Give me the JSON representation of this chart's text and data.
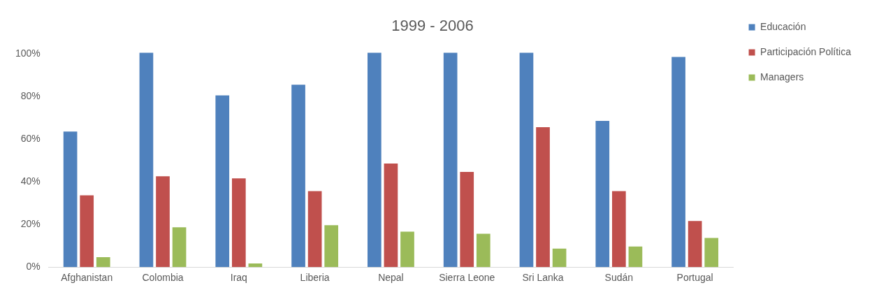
{
  "chart_data": {
    "type": "bar",
    "title": "1999 - 2006",
    "categories": [
      "Afghanistan",
      "Colombia",
      "Iraq",
      "Liberia",
      "Nepal",
      "Sierra Leone",
      "Sri Lanka",
      "Sudán",
      "Portugal"
    ],
    "series": [
      {
        "name": "Educación",
        "color": "#4f81bd",
        "values": [
          64,
          101,
          81,
          86,
          101,
          101,
          101,
          69,
          99
        ]
      },
      {
        "name": "Participación Política",
        "color": "#c0504d",
        "values": [
          34,
          43,
          42,
          36,
          49,
          45,
          66,
          36,
          22
        ]
      },
      {
        "name": "Managers",
        "color": "#9bbb59",
        "values": [
          5,
          19,
          2,
          20,
          17,
          16,
          9,
          10,
          14
        ]
      }
    ],
    "ylim": [
      0,
      102
    ],
    "yticks": [
      {
        "value": 0,
        "label": "0%"
      },
      {
        "value": 20,
        "label": "20%"
      },
      {
        "value": 40,
        "label": "40%"
      },
      {
        "value": 60,
        "label": "60%"
      },
      {
        "value": 80,
        "label": "80%"
      },
      {
        "value": 100,
        "label": "100%"
      }
    ],
    "grid": false,
    "legend": "right"
  }
}
